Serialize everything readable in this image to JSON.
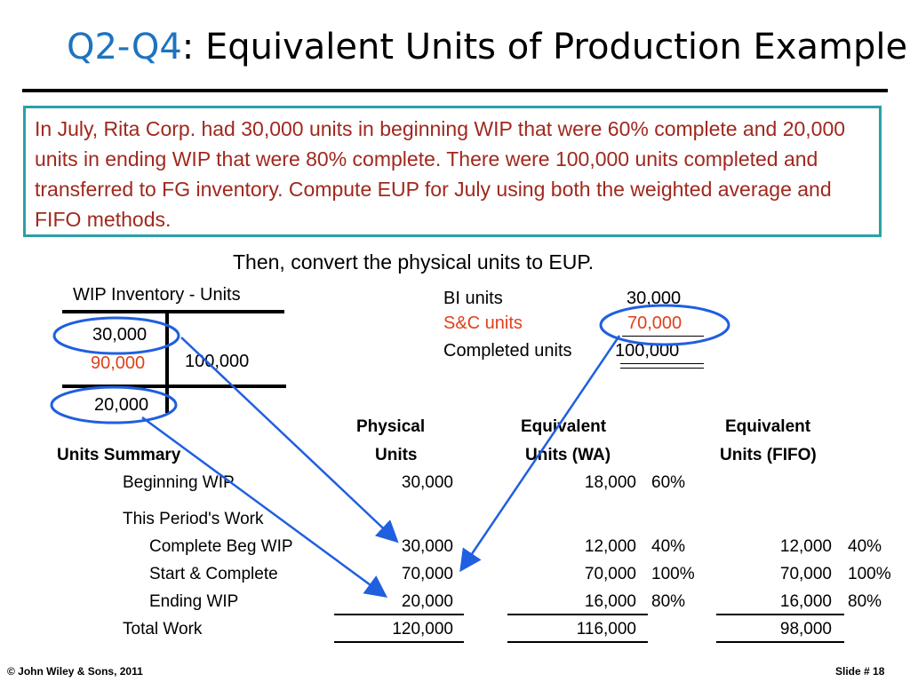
{
  "title": {
    "prefix": "Q2-Q4",
    "text": ": Equivalent Units of Production Example"
  },
  "problem": "In July, Rita Corp. had 30,000 units in beginning WIP that were 60% complete and 20,000 units in ending WIP that were 80% complete.  There were 100,000 units completed and transferred to FG inventory.  Compute EUP for July using both the weighted average and FIFO methods.",
  "instruction": "Then, convert the physical units to EUP.",
  "t_account": {
    "label": "WIP Inventory - Units",
    "debit_begin": "30,000",
    "debit_started": "90,000",
    "credit": "100,000",
    "ending": "20,000"
  },
  "calc": {
    "bi_label": "BI units",
    "bi_value": "30,000",
    "sc_label": "S&C units",
    "sc_value": "70,000",
    "completed_label": "Completed units",
    "completed_value": "100,000"
  },
  "table": {
    "summary_label": "Units Summary",
    "physical_header": [
      "Physical",
      "Units"
    ],
    "wa_header": [
      "Equivalent",
      "Units (WA)"
    ],
    "fifo_header": [
      "Equivalent",
      "Units (FIFO)"
    ],
    "beginning_wip": {
      "label": "Beginning WIP",
      "physical": "30,000",
      "wa": "18,000",
      "wa_pct": "60%"
    },
    "this_period": "This Period's Work",
    "complete_beg": {
      "label": "Complete Beg WIP",
      "physical": "30,000",
      "wa": "12,000",
      "wa_pct": "40%",
      "fifo": "12,000",
      "fifo_pct": "40%"
    },
    "start_complete": {
      "label": "Start & Complete",
      "physical": "70,000",
      "wa": "70,000",
      "wa_pct": "100%",
      "fifo": "70,000",
      "fifo_pct": "100%"
    },
    "ending_wip": {
      "label": "Ending WIP",
      "physical": "20,000",
      "wa": "16,000",
      "wa_pct": "80%",
      "fifo": "16,000",
      "fifo_pct": "80%"
    },
    "total": {
      "label": "Total Work",
      "physical": "120,000",
      "wa": "116,000",
      "fifo": "98,000"
    }
  },
  "footer": {
    "copyright": "© John Wiley & Sons, 2011",
    "slide": "Slide #  18"
  },
  "colors": {
    "accent_blue": "#1e73be",
    "problem_text": "#a0281e",
    "box_border": "#2aa0a8",
    "highlight_red": "#e0401a",
    "arrow_blue": "#1f5fe0"
  }
}
